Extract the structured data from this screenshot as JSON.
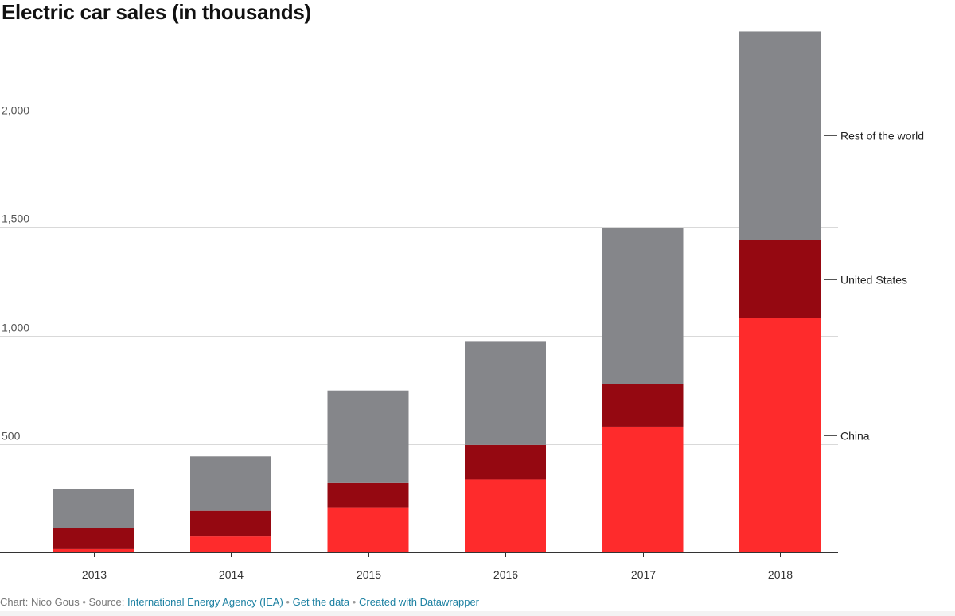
{
  "chart_data": {
    "type": "bar",
    "stacked": true,
    "title": "Electric car sales (in thousands)",
    "xlabel": "",
    "ylabel": "",
    "categories": [
      "2013",
      "2014",
      "2015",
      "2016",
      "2017",
      "2018"
    ],
    "series": [
      {
        "name": "China",
        "color": "#fe2b2c",
        "values": [
          15,
          73,
          207,
          336,
          580,
          1080
        ]
      },
      {
        "name": "United States",
        "color": "#950811",
        "values": [
          97,
          119,
          113,
          160,
          198,
          361
        ]
      },
      {
        "name": "Rest of the world",
        "color": "#85868a",
        "values": [
          178,
          251,
          426,
          475,
          718,
          961
        ]
      }
    ],
    "ylim": [
      0,
      2400
    ],
    "yticks": [
      500,
      1000,
      1500,
      2000
    ],
    "ytick_labels": [
      "500",
      "1,000",
      "1,500",
      "2,000"
    ],
    "grid": true,
    "legend": "right, direct labels"
  },
  "footer": {
    "chart_by": "Chart: Nico Gous",
    "source_prefix": "Source:",
    "source_link": "International Energy Agency (IEA)",
    "get_data": "Get the data",
    "created_with": "Created with Datawrapper",
    "separator": "•"
  }
}
